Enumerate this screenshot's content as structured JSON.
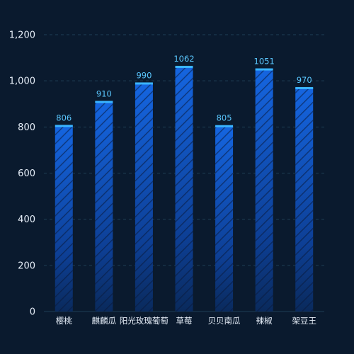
{
  "chart_data": {
    "type": "bar",
    "categories": [
      "樱桃",
      "麒麟瓜",
      "阳光玫瑰葡萄",
      "草莓",
      "贝贝南瓜",
      "辣椒",
      "架豆王"
    ],
    "values": [
      806,
      910,
      990,
      1062,
      805,
      1051,
      970
    ],
    "ylim": [
      0,
      1200
    ],
    "yticks": [
      0,
      200,
      400,
      600,
      800,
      "1,000",
      "1,200"
    ],
    "ytick_values": [
      0,
      200,
      400,
      600,
      800,
      1000,
      1200
    ],
    "grid": true,
    "title": "",
    "xlabel": "",
    "ylabel": ""
  },
  "colors": {
    "background": "#0a1a2e",
    "bar_top": "#1565e0",
    "bar_bottom": "#0a2a5c",
    "bar_cap": "#3ab4ff",
    "grid": "#1f3f55",
    "tick_text": "#e6eef8",
    "value_text": "#5bc8ff"
  }
}
